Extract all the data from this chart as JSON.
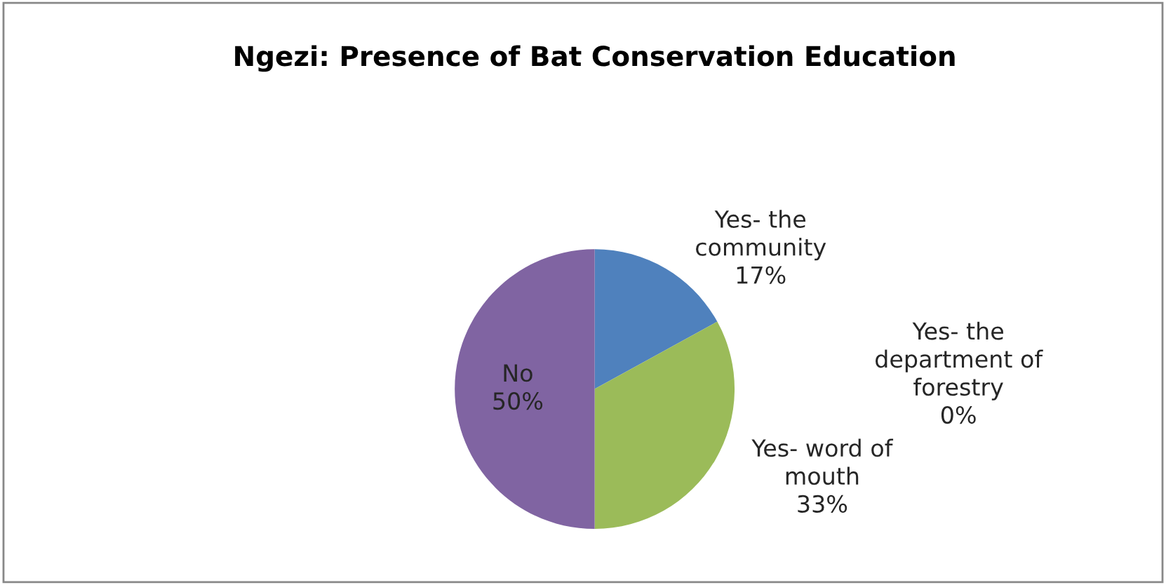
{
  "chart_data": {
    "type": "pie",
    "title": "Ngezi: Presence of Bat Conservation Education",
    "categories": [
      "Yes- the community",
      "Yes- the department of forestry",
      "Yes- word of mouth",
      "No"
    ],
    "values": [
      17,
      0,
      33,
      50
    ],
    "colors": [
      "#4f81bd",
      "#c0504d",
      "#9bbb59",
      "#8064a2"
    ],
    "value_labels": [
      "17%",
      "0%",
      "33%",
      "50%"
    ],
    "legend": false
  }
}
